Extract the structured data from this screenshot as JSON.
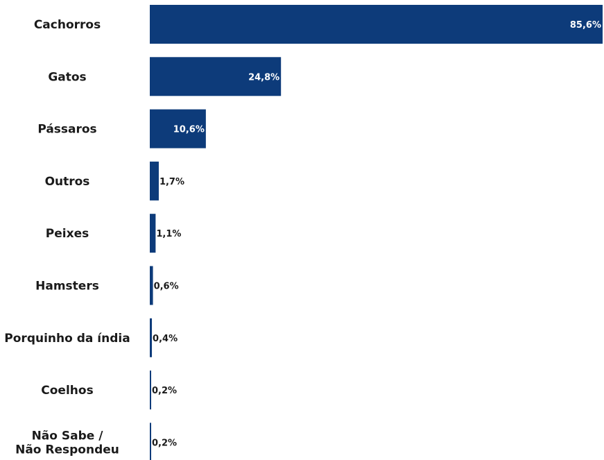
{
  "chart_data": {
    "type": "bar",
    "orientation": "horizontal",
    "categories": [
      "Cachorros",
      "Gatos",
      "Pássaros",
      "Outros",
      "Peixes",
      "Hamsters",
      "Porquinho da índia",
      "Coelhos",
      "Não Sabe / Não Respondeu"
    ],
    "category_lines": [
      [
        "Cachorros"
      ],
      [
        "Gatos"
      ],
      [
        "Pássaros"
      ],
      [
        "Outros"
      ],
      [
        "Peixes"
      ],
      [
        "Hamsters"
      ],
      [
        "Porquinho da índia"
      ],
      [
        "Coelhos"
      ],
      [
        "Não Sabe /",
        "Não Respondeu"
      ]
    ],
    "values": [
      85.6,
      24.8,
      10.6,
      1.7,
      1.1,
      0.6,
      0.4,
      0.2,
      0.2
    ],
    "value_labels": [
      "85,6%",
      "24,8%",
      "10,6%",
      "1,7%",
      "1,1%",
      "0,6%",
      "0,4%",
      "0,2%",
      "0,2%"
    ],
    "title": "",
    "xlabel": "",
    "ylabel": "",
    "xlim": [
      0,
      85.6
    ],
    "grid": false,
    "legend": "none",
    "colors": {
      "bar": "#0d3b7a",
      "label_inside": "#ffffff",
      "label_outside": "#1a1a1a",
      "category_text": "#1a1a1a"
    }
  }
}
